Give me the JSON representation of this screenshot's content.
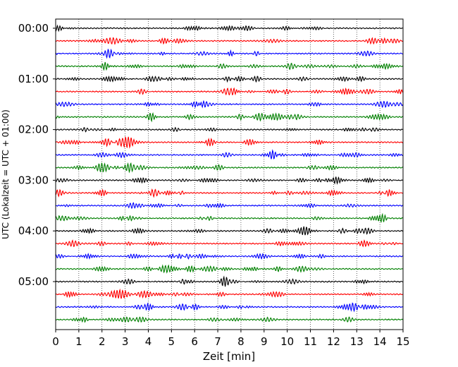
{
  "chart_data": {
    "type": "line",
    "title": "",
    "xlabel": "Zeit  [min]",
    "ylabel": "UTC (Lokalzeit = UTC + 01:00)",
    "xlim": [
      0,
      15
    ],
    "x_ticks": [
      "0",
      "1",
      "2",
      "3",
      "4",
      "5",
      "6",
      "7",
      "8",
      "9",
      "10",
      "11",
      "12",
      "13",
      "14",
      "15"
    ],
    "y_tick_labels": [
      "00:00",
      "01:00",
      "02:00",
      "03:00",
      "04:00",
      "05:00"
    ],
    "trace_interval_minutes": 15,
    "trace_count": 24,
    "trace_colors": [
      "#000000",
      "#ff0000",
      "#0000ff",
      "#008000"
    ],
    "grid": "vertical dotted",
    "legend": "none"
  }
}
